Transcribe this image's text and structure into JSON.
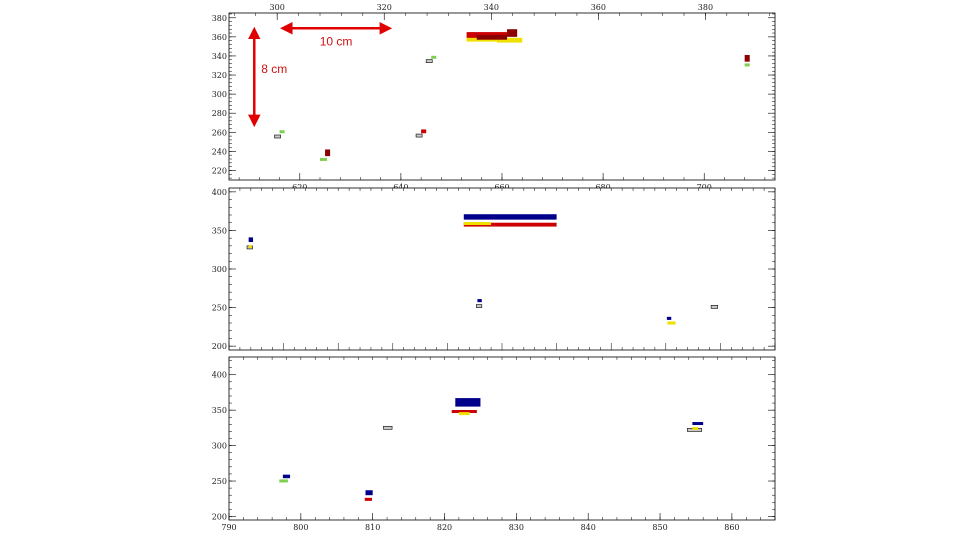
{
  "figure": {
    "description_free": true
  },
  "colors": {
    "red": "#cc0000",
    "darkred": "#8b0000",
    "blue": "#00008b",
    "yellow": "#f0e000",
    "green": "#7fd050",
    "gray": "#c8c8c8",
    "annotation": "#e00000"
  },
  "chart_data": [
    {
      "type": "scatter",
      "title": "",
      "xlabel": "",
      "ylabel": "",
      "xlim": [
        606,
        714
      ],
      "ylim": [
        210,
        385
      ],
      "x_ticks": [
        620,
        640,
        660,
        680,
        700
      ],
      "y_ticks": [
        220,
        240,
        260,
        280,
        300,
        320,
        340,
        360,
        380
      ],
      "top_axis": {
        "xlim": [
          291,
          393
        ],
        "ticks": [
          300,
          320,
          340,
          360,
          380
        ]
      },
      "grid": false,
      "hits": [
        {
          "x": 615,
          "y": 254,
          "w": 1.2,
          "h": 2,
          "color": "gray"
        },
        {
          "x": 616,
          "y": 259,
          "w": 1.0,
          "h": 2,
          "color": "green"
        },
        {
          "x": 624,
          "y": 230,
          "w": 1.4,
          "h": 3,
          "color": "green"
        },
        {
          "x": 625,
          "y": 235,
          "w": 1.0,
          "h": 7,
          "color": "darkred"
        },
        {
          "x": 643,
          "y": 255,
          "w": 1.2,
          "h": 2,
          "color": "gray"
        },
        {
          "x": 644,
          "y": 259,
          "w": 1.0,
          "h": 4,
          "color": "red"
        },
        {
          "x": 645,
          "y": 333,
          "w": 1.2,
          "h": 2,
          "color": "gray"
        },
        {
          "x": 646,
          "y": 337,
          "w": 1.0,
          "h": 3,
          "color": "green"
        },
        {
          "x": 653,
          "y": 355,
          "w": 6,
          "h": 5,
          "color": "yellow"
        },
        {
          "x": 659,
          "y": 354,
          "w": 5,
          "h": 5,
          "color": "yellow"
        },
        {
          "x": 653,
          "y": 359,
          "w": 8,
          "h": 6,
          "color": "red"
        },
        {
          "x": 655,
          "y": 357,
          "w": 6,
          "h": 5,
          "color": "darkred"
        },
        {
          "x": 661,
          "y": 360,
          "w": 2,
          "h": 8,
          "color": "darkred"
        },
        {
          "x": 708,
          "y": 329,
          "w": 1.0,
          "h": 3,
          "color": "green"
        },
        {
          "x": 708,
          "y": 334,
          "w": 1.0,
          "h": 7,
          "color": "darkred"
        }
      ],
      "annotations": [
        {
          "text": "10 cm",
          "orientation": "horizontal",
          "x_start": 301,
          "x_end": 321,
          "y": 369
        },
        {
          "text": "8 cm",
          "orientation": "vertical",
          "x": 611,
          "y_start": 368,
          "y_end": 268
        }
      ]
    },
    {
      "type": "scatter",
      "title": "",
      "xlabel": "",
      "ylabel": "",
      "xlim": [
        0,
        100
      ],
      "ylim": [
        195,
        405
      ],
      "y_ticks": [
        200,
        250,
        300,
        350,
        400
      ],
      "grid": false,
      "hits": [
        {
          "x": 3.6,
          "y": 335,
          "w": 0.8,
          "h": 6,
          "color": "blue"
        },
        {
          "x": 3.3,
          "y": 326,
          "w": 1.0,
          "h": 4,
          "color": "gray"
        },
        {
          "x": 3.6,
          "y": 327,
          "w": 0.6,
          "h": 3,
          "color": "yellow"
        },
        {
          "x": 43,
          "y": 364,
          "w": 17,
          "h": 7,
          "color": "blue"
        },
        {
          "x": 43,
          "y": 355,
          "w": 17,
          "h": 5,
          "color": "red"
        },
        {
          "x": 43,
          "y": 357,
          "w": 5,
          "h": 3,
          "color": "yellow"
        },
        {
          "x": 45.5,
          "y": 257,
          "w": 0.8,
          "h": 4,
          "color": "blue"
        },
        {
          "x": 45.3,
          "y": 250,
          "w": 1.0,
          "h": 3,
          "color": "gray"
        },
        {
          "x": 80.2,
          "y": 234,
          "w": 0.8,
          "h": 4,
          "color": "blue"
        },
        {
          "x": 80.3,
          "y": 228,
          "w": 1.5,
          "h": 4,
          "color": "yellow"
        },
        {
          "x": 88.3,
          "y": 249,
          "w": 1.2,
          "h": 3,
          "color": "gray"
        }
      ]
    },
    {
      "type": "scatter",
      "title": "",
      "xlabel": "",
      "ylabel": "",
      "xlim": [
        790,
        866
      ],
      "ylim": [
        195,
        425
      ],
      "x_ticks": [
        790,
        800,
        810,
        820,
        830,
        840,
        850,
        860
      ],
      "y_ticks": [
        200,
        250,
        300,
        350,
        400
      ],
      "grid": false,
      "hits": [
        {
          "x": 797.5,
          "y": 254,
          "w": 1.0,
          "h": 5,
          "color": "blue"
        },
        {
          "x": 797.0,
          "y": 248,
          "w": 1.2,
          "h": 3,
          "color": "green"
        },
        {
          "x": 809.0,
          "y": 230,
          "w": 1.0,
          "h": 7,
          "color": "blue"
        },
        {
          "x": 808.9,
          "y": 222,
          "w": 1.0,
          "h": 3,
          "color": "red"
        },
        {
          "x": 811.5,
          "y": 323,
          "w": 1.2,
          "h": 3,
          "color": "gray"
        },
        {
          "x": 821.5,
          "y": 355,
          "w": 3.5,
          "h": 12,
          "color": "blue"
        },
        {
          "x": 821.0,
          "y": 346,
          "w": 3.5,
          "h": 4,
          "color": "red"
        },
        {
          "x": 822.0,
          "y": 343,
          "w": 1.5,
          "h": 4,
          "color": "yellow"
        },
        {
          "x": 854.5,
          "y": 329,
          "w": 1.5,
          "h": 4,
          "color": "blue"
        },
        {
          "x": 853.8,
          "y": 320,
          "w": 2.0,
          "h": 4,
          "color": "gray"
        },
        {
          "x": 854.5,
          "y": 322,
          "w": 0.8,
          "h": 4,
          "color": "yellow"
        }
      ]
    }
  ]
}
